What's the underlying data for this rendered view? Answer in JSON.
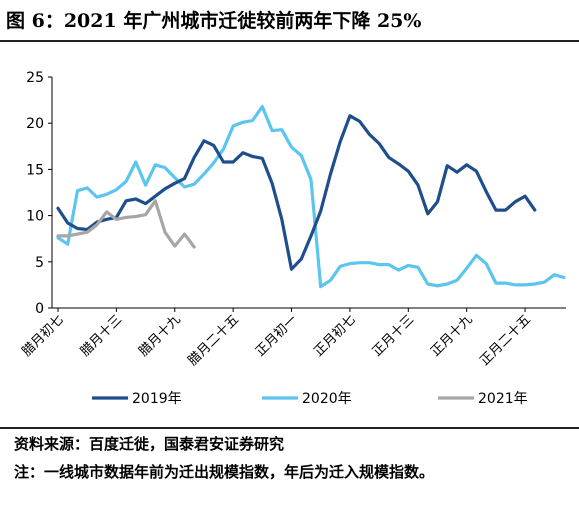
{
  "figure": {
    "title": "图 6：2021 年广州城市迁徙较前两年下降 25%",
    "source": "资料来源：百度迁徙，国泰君安证券研究",
    "note": "注：一线城市数据年前为迁出规模指数，年后为迁入规模指数。"
  },
  "chart_data": {
    "type": "line",
    "title": "",
    "xlabel": "",
    "ylabel": "",
    "ylim": [
      0,
      25
    ],
    "yticks": [
      "0",
      "5",
      "10",
      "15",
      "20",
      "25"
    ],
    "x_tick_labels": [
      "腊月初七",
      "腊月十三",
      "腊月十九",
      "腊月二十五",
      "正月初一",
      "正月初七",
      "正月十三",
      "正月十九",
      "正月二十五"
    ],
    "x_tick_index": [
      0,
      6,
      12,
      18,
      24,
      30,
      36,
      42,
      48
    ],
    "legend_position": "bottom",
    "grid": false,
    "series": [
      {
        "name": "2019年",
        "color": "#1f4e8c",
        "values": [
          10.8,
          9.2,
          8.6,
          8.5,
          9.3,
          9.6,
          9.8,
          11.6,
          11.8,
          11.3,
          12.1,
          12.9,
          13.5,
          14.0,
          16.3,
          18.1,
          17.6,
          15.8,
          15.8,
          16.8,
          16.4,
          16.2,
          13.5,
          9.6,
          4.2,
          5.3,
          7.8,
          10.5,
          14.5,
          18.0,
          20.8,
          20.2,
          18.8,
          17.8,
          16.3,
          15.6,
          14.8,
          13.3,
          10.2,
          11.5,
          15.4,
          14.7,
          15.5,
          14.8,
          12.6,
          10.6,
          10.6,
          11.5,
          12.1,
          10.6
        ]
      },
      {
        "name": "2020年",
        "color": "#5bc5ef",
        "values": [
          7.6,
          6.9,
          12.7,
          13.0,
          12.0,
          12.3,
          12.8,
          13.7,
          15.8,
          13.3,
          15.5,
          15.2,
          14.1,
          13.1,
          13.4,
          14.5,
          15.7,
          17.2,
          19.7,
          20.1,
          20.3,
          21.8,
          19.2,
          19.3,
          17.4,
          16.5,
          13.9,
          2.3,
          3.0,
          4.5,
          4.8,
          4.9,
          4.9,
          4.7,
          4.7,
          4.1,
          4.6,
          4.4,
          2.6,
          2.4,
          2.6,
          3.0,
          4.3,
          5.7,
          4.8,
          2.7,
          2.7,
          2.5,
          2.5,
          2.6,
          2.8,
          3.6,
          3.3
        ]
      },
      {
        "name": "2021年",
        "color": "#a6a6a6",
        "values": [
          7.8,
          7.8,
          8.0,
          8.2,
          9.0,
          10.4,
          9.6,
          9.8,
          9.9,
          10.1,
          11.6,
          8.2,
          6.7,
          8.0,
          6.6
        ]
      }
    ]
  }
}
